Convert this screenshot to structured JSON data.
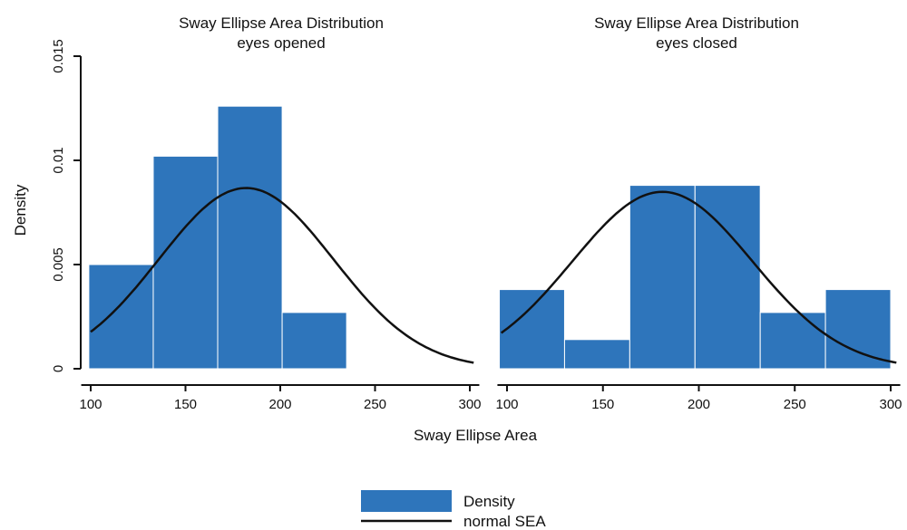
{
  "chart_data": {
    "type": "bar",
    "ylabel": "Density",
    "xlabel": "Sway Ellipse Area",
    "ylim": [
      0,
      0.015
    ],
    "yticks": [
      0,
      0.005,
      0.01,
      0.015
    ],
    "ytick_labels": [
      "0",
      "0.005",
      "0.01",
      "0.015"
    ],
    "xlim": [
      95,
      305
    ],
    "xticks": [
      100,
      150,
      200,
      250,
      300
    ],
    "xtick_labels": [
      "100",
      "150",
      "200",
      "250",
      "300"
    ],
    "grid": false,
    "legend": {
      "placement": "bottom-center",
      "entries": [
        {
          "label": "Density",
          "kind": "bar"
        },
        {
          "label": "normal SEA",
          "kind": "line"
        }
      ]
    },
    "colors": {
      "bar": "#2e75bb",
      "line": "#111111"
    },
    "panels": [
      {
        "title": "Sway Ellipse Area Distribution",
        "subtitle": "eyes opened",
        "bins": [
          {
            "x0": 99,
            "x1": 133,
            "density": 0.005
          },
          {
            "x0": 133,
            "x1": 167,
            "density": 0.0102
          },
          {
            "x0": 167,
            "x1": 201,
            "density": 0.0126
          },
          {
            "x0": 201,
            "x1": 235,
            "density": 0.0027
          }
        ],
        "normal": {
          "mean": 182,
          "sd": 46,
          "x_range": [
            100,
            302
          ],
          "y_at_x0": 0.002
        }
      },
      {
        "title": "Sway Ellipse Area Distribution",
        "subtitle": "eyes closed",
        "bins": [
          {
            "x0": 96,
            "x1": 130,
            "density": 0.0038
          },
          {
            "x0": 130,
            "x1": 164,
            "density": 0.0014
          },
          {
            "x0": 164,
            "x1": 198,
            "density": 0.0088
          },
          {
            "x0": 198,
            "x1": 232,
            "density": 0.0088
          },
          {
            "x0": 232,
            "x1": 266,
            "density": 0.0027
          },
          {
            "x0": 266,
            "x1": 300,
            "density": 0.0038
          }
        ],
        "normal": {
          "mean": 181,
          "sd": 47,
          "x_range": [
            97,
            303
          ],
          "y_at_x0": 0.0018
        }
      }
    ]
  }
}
